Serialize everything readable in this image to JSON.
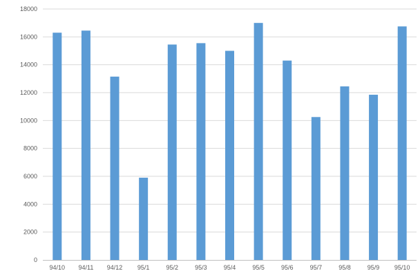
{
  "chart_data": {
    "type": "bar",
    "categories": [
      "94/10",
      "94/11",
      "94/12",
      "95/1",
      "95/2",
      "95/3",
      "95/4",
      "95/5",
      "95/6",
      "95/7",
      "95/8",
      "95/9",
      "95/10"
    ],
    "values": [
      16300,
      16450,
      13150,
      5900,
      15450,
      15550,
      15000,
      17000,
      14300,
      10250,
      12450,
      11850,
      16750
    ],
    "title": "",
    "xlabel": "",
    "ylabel": "",
    "ylim": [
      0,
      18000
    ],
    "yticks": [
      0,
      2000,
      4000,
      6000,
      8000,
      10000,
      12000,
      14000,
      16000,
      18000
    ],
    "grid": true,
    "legend": "none",
    "bar_color": "#5b9bd5",
    "grid_color": "#d9d9d9",
    "axis_color": "#bfbfbf"
  }
}
